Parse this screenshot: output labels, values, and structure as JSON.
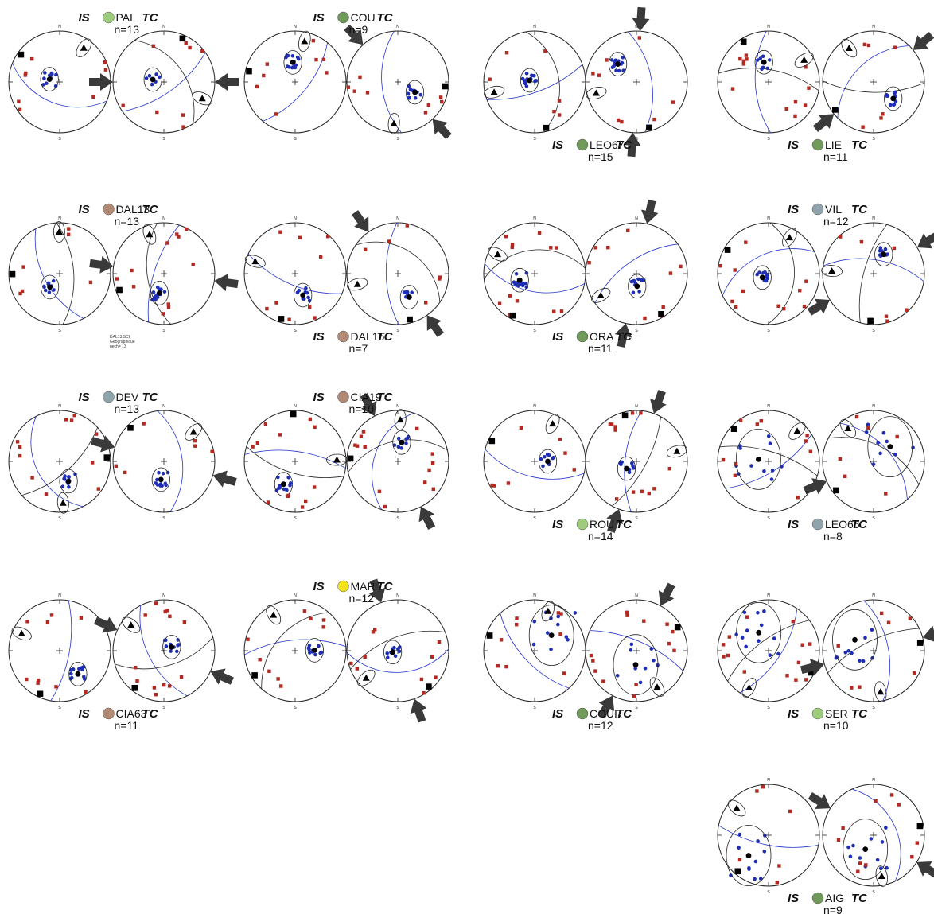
{
  "labels": {
    "is": "IS",
    "tc": "TC",
    "north": "N",
    "south": "S"
  },
  "colors": {
    "pole_blue": "#1f2fb5",
    "square_red": "#b22a22",
    "great_circle_blue": "#2233cc",
    "arrow_dark": "#3a3a3a",
    "dot_green_bright": "#9ccc7c",
    "dot_green": "#6f9a5a",
    "dot_brown": "#b08a74",
    "dot_grey": "#8fa3ad",
    "dot_yellow": "#f4e21a"
  },
  "site_order": [
    "PAL",
    "COU",
    "LEO67",
    "LIE",
    "DAL13",
    "DAL15",
    "ORA",
    "VIL",
    "DEV",
    "CIA19",
    "ROU",
    "LEO66",
    "CIA63",
    "MAR",
    "COUR",
    "SER",
    "AIG"
  ],
  "sites": {
    "PAL": {
      "name": "PAL",
      "n_label": "n=13",
      "dot_color": "dot_green_bright"
    },
    "COU": {
      "name": "COU",
      "n_label": "n=9",
      "dot_color": "dot_green"
    },
    "LEO67": {
      "name": "LEO67",
      "n_label": "n=15",
      "dot_color": "dot_green"
    },
    "LIE": {
      "name": "LIE",
      "n_label": "n=11",
      "dot_color": "dot_green"
    },
    "DAL13": {
      "name": "DAL13",
      "n_label": "n=13",
      "dot_color": "dot_brown"
    },
    "DAL15": {
      "name": "DAL15",
      "n_label": "n=7",
      "dot_color": "dot_brown"
    },
    "ORA": {
      "name": "ORA",
      "n_label": "n=11",
      "dot_color": "dot_green"
    },
    "VIL": {
      "name": "VIL",
      "n_label": "n=12",
      "dot_color": "dot_grey"
    },
    "DEV": {
      "name": "DEV",
      "n_label": "n=13",
      "dot_color": "dot_grey"
    },
    "CIA19": {
      "name": "CIA19",
      "n_label": "n=10",
      "dot_color": "dot_brown"
    },
    "ROU": {
      "name": "ROU",
      "n_label": "n=14",
      "dot_color": "dot_green_bright"
    },
    "LEO66": {
      "name": "LEO66",
      "n_label": "n=8",
      "dot_color": "dot_grey"
    },
    "CIA63": {
      "name": "CIA63",
      "n_label": "n=11",
      "dot_color": "dot_brown"
    },
    "MAR": {
      "name": "MAR",
      "n_label": "n=12",
      "dot_color": "dot_yellow"
    },
    "COUR": {
      "name": "COUR",
      "n_label": "n=12",
      "dot_color": "dot_green"
    },
    "SER": {
      "name": "SER",
      "n_label": "n=10",
      "dot_color": "dot_green_bright"
    },
    "AIG": {
      "name": "AIG",
      "n_label": "n=9",
      "dot_color": "dot_green"
    }
  },
  "dal13_caption": [
    "DAL13.SCI",
    "Geographique",
    "nech= 13"
  ]
}
